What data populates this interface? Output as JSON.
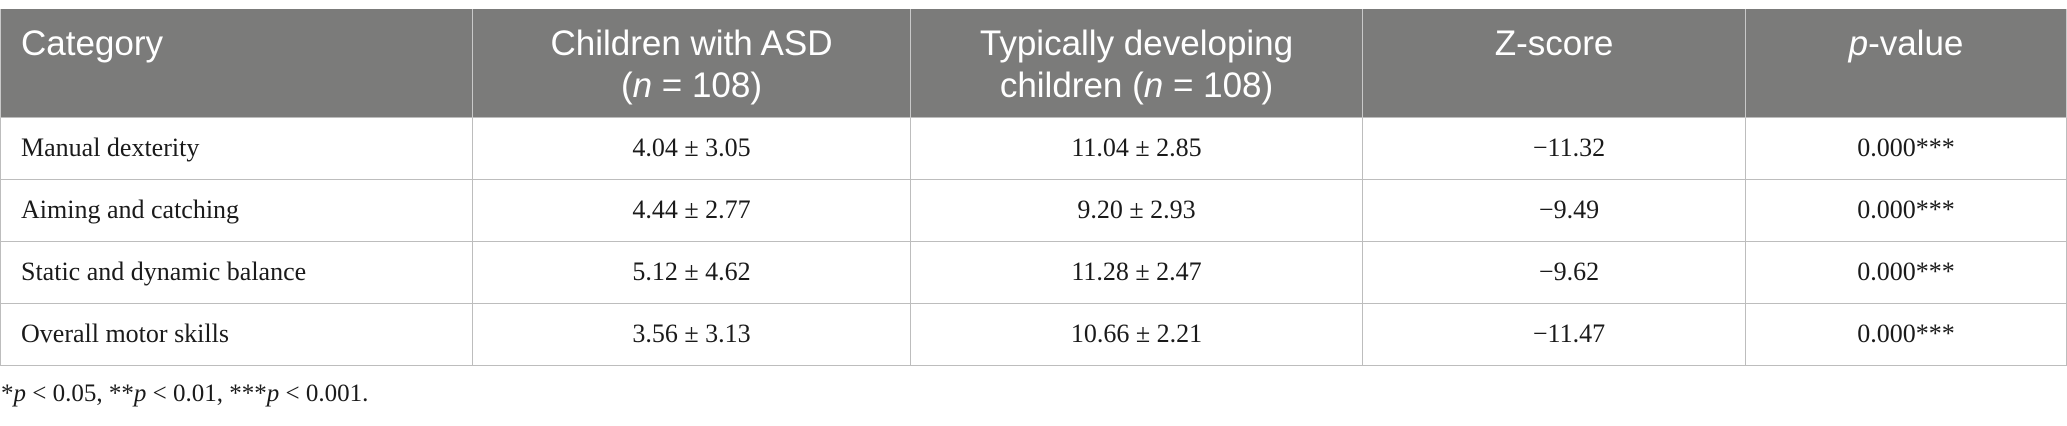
{
  "table": {
    "headers": {
      "category": "Category",
      "asd_line1": "Children with ASD",
      "asd_n_var": "n",
      "asd_n_rest": " = 108)",
      "td_line1": "Typically developing",
      "td_line2_pre": "children (",
      "td_n_var": "n",
      "td_n_rest": " = 108)",
      "zscore": "Z-score",
      "p_var": "p",
      "p_rest": "-value"
    },
    "rows": [
      {
        "category": "Manual dexterity",
        "asd": "4.04 ± 3.05",
        "td": "11.04 ± 2.85",
        "z": "−11.32",
        "p": "0.000***"
      },
      {
        "category": "Aiming and catching",
        "asd": "4.44 ± 2.77",
        "td": "9.20 ± 2.93",
        "z": "−9.49",
        "p": "0.000***"
      },
      {
        "category": "Static and dynamic balance",
        "asd": "5.12 ± 4.62",
        "td": "11.28 ± 2.47",
        "z": "−9.62",
        "p": "0.000***"
      },
      {
        "category": "Overall motor skills",
        "asd": "3.56 ± 3.13",
        "td": "10.66 ± 2.21",
        "z": "−11.47",
        "p": "0.000***"
      }
    ]
  },
  "footnote": {
    "s1": "*",
    "p1": "p",
    "s2": " < 0.05, **",
    "p2": "p",
    "s3": " < 0.01, ***",
    "p3": "p",
    "s4": " < 0.001."
  }
}
